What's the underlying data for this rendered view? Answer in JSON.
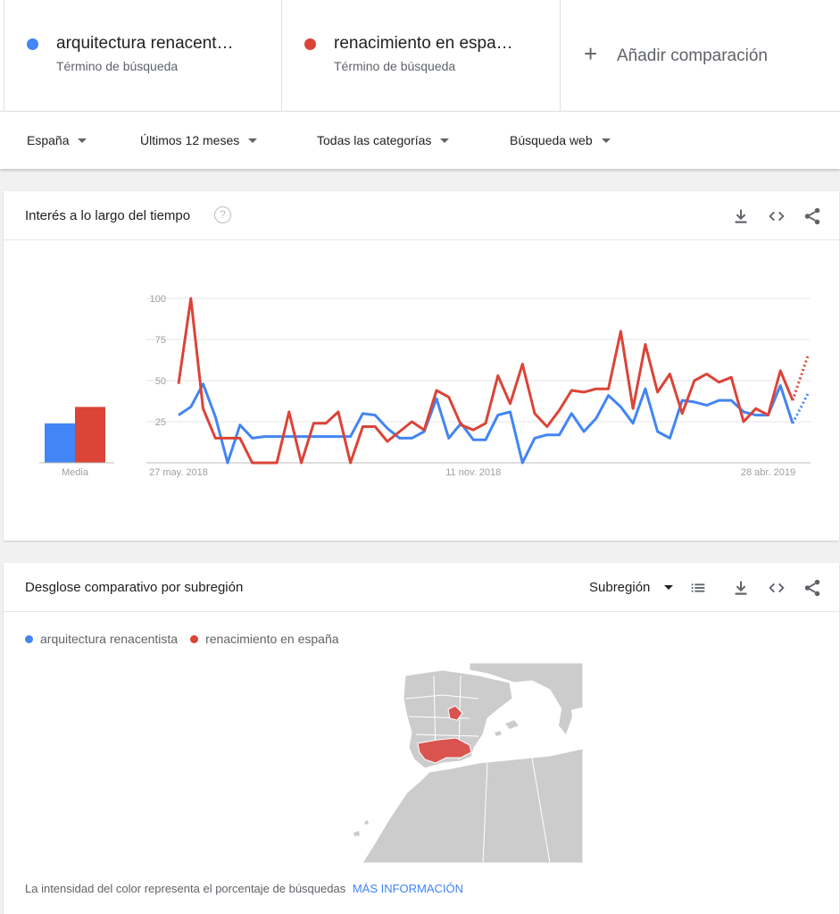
{
  "terms": [
    {
      "name": "arquitectura renacent…",
      "sub": "Término de búsqueda",
      "color": "#4285f4"
    },
    {
      "name": "renacimiento en espa…",
      "sub": "Término de búsqueda",
      "color": "#db4437"
    }
  ],
  "add_comparison": {
    "label": "Añadir comparación",
    "icon": "plus-icon"
  },
  "filters": {
    "region": "España",
    "period": "Últimos 12 meses",
    "category": "Todas las categorías",
    "search_type": "Búsqueda web"
  },
  "interest_card": {
    "title": "Interés a lo largo del tiempo",
    "help": "?",
    "average_label": "Media"
  },
  "subregion_card": {
    "title": "Desglose comparativo por subregión",
    "select_value": "Subregión",
    "legend": [
      "arquitectura renacentista",
      "renacimiento en españa"
    ],
    "footer_text": "La intensidad del color representa el porcentaje de búsquedas",
    "footer_link": "MÁS INFORMACIÓN"
  },
  "colors": {
    "blue": "#4285f4",
    "red": "#db4437",
    "map_fill": "#cccccc",
    "map_highlight": "#d9534f"
  },
  "chart_data": {
    "type": "line",
    "y_ticks": [
      25,
      50,
      75,
      100
    ],
    "x_tick_labels": [
      "27 may. 2018",
      "11 nov. 2018",
      "28 abr. 2019"
    ],
    "x_tick_index": [
      0,
      24,
      48
    ],
    "ylim": [
      0,
      100
    ],
    "averages": [
      24,
      34
    ],
    "series": [
      {
        "name": "arquitectura renacentista",
        "color": "#4285f4",
        "values": [
          29,
          34,
          48,
          28,
          0,
          23,
          15,
          16,
          16,
          16,
          16,
          16,
          16,
          16,
          16,
          30,
          29,
          21,
          15,
          15,
          19,
          39,
          15,
          24,
          14,
          14,
          29,
          31,
          0,
          15,
          17,
          17,
          30,
          19,
          27,
          41,
          34,
          24,
          45,
          19,
          15,
          38,
          37,
          35,
          38,
          38,
          31,
          29,
          29,
          47,
          24
        ],
        "partial": 42
      },
      {
        "name": "renacimiento en españa",
        "color": "#db4437",
        "values": [
          48,
          100,
          33,
          15,
          15,
          15,
          0,
          0,
          0,
          31,
          0,
          24,
          24,
          31,
          0,
          22,
          22,
          13,
          19,
          25,
          20,
          44,
          40,
          23,
          20,
          24,
          53,
          36,
          60,
          30,
          22,
          32,
          44,
          43,
          45,
          45,
          80,
          33,
          72,
          43,
          54,
          30,
          50,
          54,
          49,
          52,
          25,
          33,
          29,
          56,
          38
        ],
        "partial": 65
      }
    ]
  }
}
